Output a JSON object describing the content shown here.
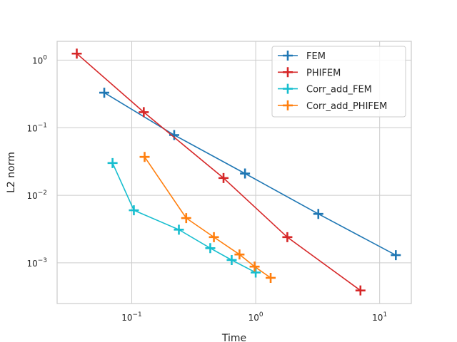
{
  "chart_data": {
    "type": "line",
    "title": "",
    "xlabel": "Time",
    "ylabel": "L2 norm",
    "xscale": "log",
    "yscale": "log",
    "xlim": [
      0.025,
      18
    ],
    "ylim": [
      0.00025,
      1.9
    ],
    "grid": true,
    "legend_position": "top-right",
    "x_ticks": [
      {
        "value": 0.1,
        "base": "10",
        "exp": "−1"
      },
      {
        "value": 1,
        "base": "10",
        "exp": "0"
      },
      {
        "value": 10,
        "base": "10",
        "exp": "1"
      }
    ],
    "y_ticks": [
      {
        "value": 0.001,
        "base": "10",
        "exp": "−3"
      },
      {
        "value": 0.01,
        "base": "10",
        "exp": "−2"
      },
      {
        "value": 0.1,
        "base": "10",
        "exp": "−1"
      },
      {
        "value": 1,
        "base": "10",
        "exp": "0"
      }
    ],
    "series": [
      {
        "name": "FEM",
        "color": "#1f77b4",
        "x": [
          0.06,
          0.22,
          0.82,
          3.2,
          13.5
        ],
        "y": [
          0.33,
          0.078,
          0.021,
          0.0053,
          0.0013
        ]
      },
      {
        "name": "PHIFEM",
        "color": "#d62728",
        "x": [
          0.036,
          0.125,
          0.55,
          1.8,
          7.0
        ],
        "y": [
          1.25,
          0.17,
          0.018,
          0.0024,
          0.00039
        ]
      },
      {
        "name": "Corr_add_FEM",
        "color": "#17becf",
        "x": [
          0.07,
          0.104,
          0.24,
          0.43,
          0.64,
          1.0
        ],
        "y": [
          0.03,
          0.006,
          0.0031,
          0.00165,
          0.0011,
          0.00072
        ]
      },
      {
        "name": "Corr_add_PHIFEM",
        "color": "#ff7f0e",
        "x": [
          0.127,
          0.275,
          0.46,
          0.74,
          0.98,
          1.32
        ],
        "y": [
          0.037,
          0.0046,
          0.0024,
          0.00133,
          0.00088,
          0.0006
        ]
      }
    ]
  }
}
